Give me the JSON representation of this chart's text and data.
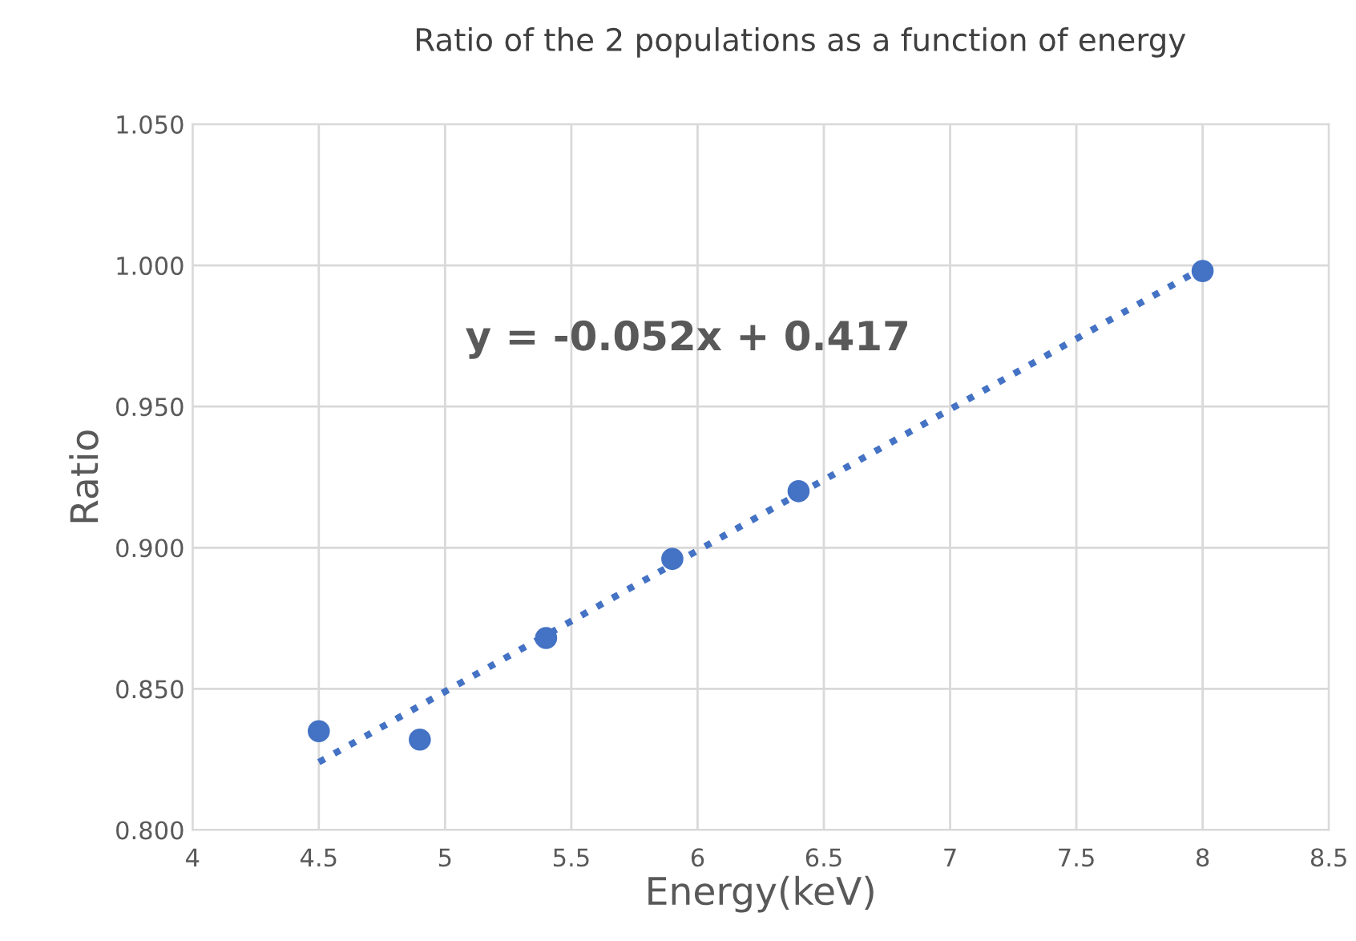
{
  "chart_data": {
    "type": "scatter",
    "title": "Ratio of the 2 populations as a function of energy",
    "xlabel": "Energy(keV)",
    "ylabel": "Ratio",
    "annotations": [
      "y = -0.052x + 0.417"
    ],
    "series": [
      {
        "color": "#4472c4",
        "x": [
          4.5,
          4.9,
          5.4,
          5.9,
          6.4,
          8.0
        ],
        "values": [
          0.835,
          0.832,
          0.868,
          0.896,
          0.92,
          0.998
        ],
        "marker": "circle"
      },
      {
        "type": "line",
        "color": "#4472c4",
        "x": [
          4.5,
          8.0
        ],
        "values": [
          0.824,
          0.999
        ],
        "line_style": "dotted",
        "marker": "none"
      }
    ],
    "xlim": [
      4,
      8.5
    ],
    "xticks": [
      4,
      4.5,
      5,
      5.5,
      6,
      6.5,
      7,
      7.5,
      8,
      8.5
    ],
    "ylim": [
      0.8,
      1.05
    ],
    "yticks": [
      {
        "value": 0.8,
        "label": "0.800"
      },
      {
        "value": 0.85,
        "label": "0.850"
      },
      {
        "value": 0.9,
        "label": "0.900"
      },
      {
        "value": 0.95,
        "label": "0.950"
      },
      {
        "value": 1.0,
        "label": "1.000"
      },
      {
        "value": 1.05,
        "label": "1.050"
      }
    ],
    "grid": true,
    "legend": false
  }
}
